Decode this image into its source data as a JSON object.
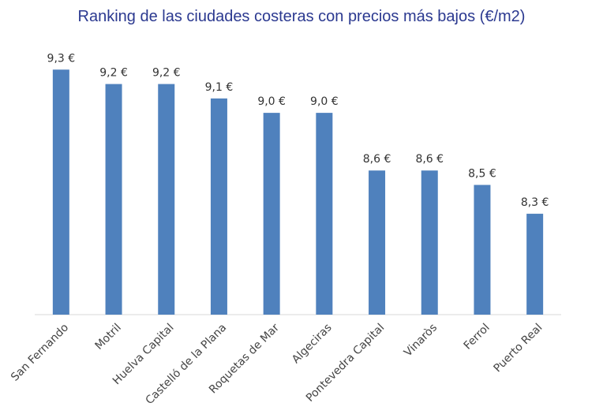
{
  "chart_data": {
    "type": "bar",
    "title": "Ranking de las ciudades costeras con precios más bajos (€/m2)",
    "categories": [
      "San Fernando",
      "Motril",
      "Huelva Capital",
      "Castelló de la Plana",
      "Roquetas de Mar",
      "Algeciras",
      "Pontevedra Capital",
      "Vinaròs",
      "Ferrol",
      "Puerto Real"
    ],
    "values": [
      9.3,
      9.2,
      9.2,
      9.1,
      9.0,
      9.0,
      8.6,
      8.6,
      8.5,
      8.3
    ],
    "data_labels": [
      "9,3 €",
      "9,2 €",
      "9,2 €",
      "9,1 €",
      "9,0 €",
      "9,0 €",
      "8,6 €",
      "8,6 €",
      "8,5 €",
      "8,3 €"
    ],
    "xlabel": "",
    "ylabel": "",
    "ylim": [
      7.6,
      9.4
    ],
    "grid": false,
    "legend": "none",
    "bar_color": "#4f81bd",
    "title_color": "#2b3990"
  }
}
